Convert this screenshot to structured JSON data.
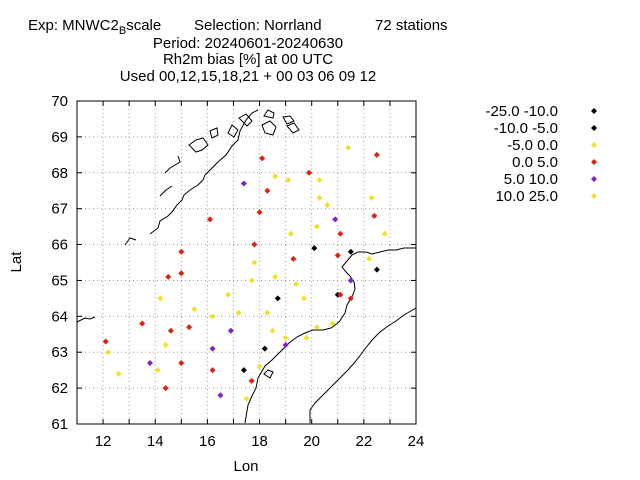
{
  "title": {
    "line1_a": "Exp: MNWC2",
    "line1_sub": "B",
    "line1_b": "scale",
    "selection": "Selection: Norrland",
    "stations": "72 stations",
    "period": "Period: 20240601-20240630",
    "param": "Rh2m bias [%] at  00 UTC",
    "used": "Used 00,12,15,18,21 + 00 03 06 09 12"
  },
  "chart_data": {
    "type": "scatter",
    "xlabel": "Lon",
    "ylabel": "Lat",
    "xlim": [
      11,
      24
    ],
    "ylim": [
      61,
      70
    ],
    "xticks": [
      12,
      14,
      16,
      18,
      20,
      22,
      24
    ],
    "yticks": [
      61,
      62,
      63,
      64,
      65,
      66,
      67,
      68,
      69,
      70
    ],
    "grid": true,
    "legend": "right",
    "classes": [
      {
        "label": "-25.0 -10.0",
        "color": "#000000"
      },
      {
        "label": "-10.0 -5.0",
        "color": "#000000"
      },
      {
        "label": "-5.0 0.0",
        "color": "#f0e030"
      },
      {
        "label": "0.0 5.0",
        "color": "#e02010"
      },
      {
        "label": "5.0 10.0",
        "color": "#8020c8"
      },
      {
        "label": "10.0 25.0",
        "color": "#f0e030"
      }
    ],
    "points": [
      {
        "lon": 12.1,
        "lat": 63.3,
        "c": 3
      },
      {
        "lon": 12.2,
        "lat": 63.0,
        "c": 2
      },
      {
        "lon": 12.6,
        "lat": 62.4,
        "c": 2
      },
      {
        "lon": 13.5,
        "lat": 63.8,
        "c": 3
      },
      {
        "lon": 13.8,
        "lat": 62.7,
        "c": 4
      },
      {
        "lon": 14.1,
        "lat": 62.5,
        "c": 2
      },
      {
        "lon": 14.2,
        "lat": 64.5,
        "c": 2
      },
      {
        "lon": 14.4,
        "lat": 63.2,
        "c": 2
      },
      {
        "lon": 14.4,
        "lat": 62.0,
        "c": 3
      },
      {
        "lon": 14.5,
        "lat": 65.1,
        "c": 3
      },
      {
        "lon": 14.6,
        "lat": 63.6,
        "c": 3
      },
      {
        "lon": 15.0,
        "lat": 65.8,
        "c": 3
      },
      {
        "lon": 15.0,
        "lat": 65.2,
        "c": 3
      },
      {
        "lon": 15.0,
        "lat": 62.7,
        "c": 3
      },
      {
        "lon": 15.3,
        "lat": 63.7,
        "c": 3
      },
      {
        "lon": 15.5,
        "lat": 64.2,
        "c": 2
      },
      {
        "lon": 16.1,
        "lat": 66.7,
        "c": 3
      },
      {
        "lon": 16.2,
        "lat": 64.0,
        "c": 2
      },
      {
        "lon": 16.2,
        "lat": 63.1,
        "c": 4
      },
      {
        "lon": 16.2,
        "lat": 62.5,
        "c": 3
      },
      {
        "lon": 16.5,
        "lat": 61.8,
        "c": 4
      },
      {
        "lon": 16.8,
        "lat": 64.6,
        "c": 2
      },
      {
        "lon": 16.9,
        "lat": 63.6,
        "c": 4
      },
      {
        "lon": 17.2,
        "lat": 64.1,
        "c": 2
      },
      {
        "lon": 17.4,
        "lat": 67.7,
        "c": 4
      },
      {
        "lon": 17.4,
        "lat": 62.5,
        "c": 0
      },
      {
        "lon": 17.5,
        "lat": 61.7,
        "c": 2
      },
      {
        "lon": 17.7,
        "lat": 65.0,
        "c": 2
      },
      {
        "lon": 17.7,
        "lat": 62.2,
        "c": 3
      },
      {
        "lon": 17.8,
        "lat": 66.0,
        "c": 3
      },
      {
        "lon": 17.8,
        "lat": 65.5,
        "c": 2
      },
      {
        "lon": 18.0,
        "lat": 66.9,
        "c": 3
      },
      {
        "lon": 18.0,
        "lat": 62.6,
        "c": 2
      },
      {
        "lon": 18.1,
        "lat": 68.4,
        "c": 3
      },
      {
        "lon": 18.2,
        "lat": 63.1,
        "c": 0
      },
      {
        "lon": 18.3,
        "lat": 67.5,
        "c": 3
      },
      {
        "lon": 18.3,
        "lat": 64.1,
        "c": 2
      },
      {
        "lon": 18.5,
        "lat": 63.6,
        "c": 2
      },
      {
        "lon": 18.6,
        "lat": 67.9,
        "c": 2
      },
      {
        "lon": 18.6,
        "lat": 65.1,
        "c": 2
      },
      {
        "lon": 18.7,
        "lat": 64.5,
        "c": 0
      },
      {
        "lon": 19.0,
        "lat": 63.4,
        "c": 2
      },
      {
        "lon": 19.0,
        "lat": 63.2,
        "c": 4
      },
      {
        "lon": 19.1,
        "lat": 67.8,
        "c": 2
      },
      {
        "lon": 19.2,
        "lat": 66.3,
        "c": 2
      },
      {
        "lon": 19.3,
        "lat": 65.6,
        "c": 3
      },
      {
        "lon": 19.4,
        "lat": 64.9,
        "c": 2
      },
      {
        "lon": 19.7,
        "lat": 64.5,
        "c": 2
      },
      {
        "lon": 19.8,
        "lat": 63.4,
        "c": 2
      },
      {
        "lon": 19.9,
        "lat": 68.0,
        "c": 3
      },
      {
        "lon": 20.1,
        "lat": 65.9,
        "c": 0
      },
      {
        "lon": 20.2,
        "lat": 66.5,
        "c": 2
      },
      {
        "lon": 20.2,
        "lat": 63.7,
        "c": 2
      },
      {
        "lon": 20.3,
        "lat": 67.3,
        "c": 2
      },
      {
        "lon": 20.3,
        "lat": 67.8,
        "c": 2
      },
      {
        "lon": 20.6,
        "lat": 67.1,
        "c": 2
      },
      {
        "lon": 20.8,
        "lat": 63.8,
        "c": 2
      },
      {
        "lon": 20.9,
        "lat": 66.7,
        "c": 4
      },
      {
        "lon": 21.0,
        "lat": 65.7,
        "c": 3
      },
      {
        "lon": 21.1,
        "lat": 66.3,
        "c": 3
      },
      {
        "lon": 21.0,
        "lat": 64.6,
        "c": 0
      },
      {
        "lon": 21.1,
        "lat": 64.6,
        "c": 3
      },
      {
        "lon": 21.4,
        "lat": 68.7,
        "c": 2
      },
      {
        "lon": 21.5,
        "lat": 65.8,
        "c": 0
      },
      {
        "lon": 21.5,
        "lat": 65.0,
        "c": 4
      },
      {
        "lon": 21.5,
        "lat": 64.5,
        "c": 3
      },
      {
        "lon": 22.2,
        "lat": 65.6,
        "c": 2
      },
      {
        "lon": 22.3,
        "lat": 67.3,
        "c": 2
      },
      {
        "lon": 22.4,
        "lat": 66.8,
        "c": 3
      },
      {
        "lon": 22.5,
        "lat": 65.3,
        "c": 0
      },
      {
        "lon": 22.5,
        "lat": 68.5,
        "c": 3
      },
      {
        "lon": 22.8,
        "lat": 66.3,
        "c": 2
      }
    ]
  }
}
